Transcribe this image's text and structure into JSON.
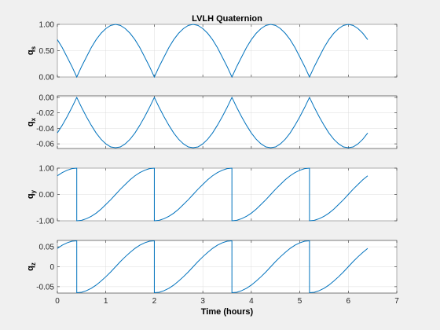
{
  "chart_data": {
    "type": "line",
    "title": "LVLH Quaternion",
    "xlabel": "Time (hours)",
    "xlim": [
      0,
      7
    ],
    "xticks": [
      0,
      1,
      2,
      3,
      4,
      5,
      6,
      7
    ],
    "xtick_labels": [
      "0",
      "1",
      "2",
      "3",
      "4",
      "5",
      "6",
      "7"
    ],
    "grid": true,
    "line_color": "#0072bd",
    "subplots": [
      {
        "ylabel_base": "q",
        "ylabel_sub": "s",
        "ylim": [
          0,
          1
        ],
        "yticks": [
          0,
          0.5,
          1
        ],
        "ytick_labels": [
          "0.00",
          "0.50",
          "1.00"
        ],
        "x": [
          0,
          0.1,
          0.2,
          0.3,
          0.4,
          0.5,
          0.6,
          0.7,
          0.8,
          0.9,
          1.0,
          1.1,
          1.2,
          1.3,
          1.4,
          1.5,
          1.6,
          1.7,
          1.8,
          1.9,
          2.0,
          2.1,
          2.2,
          2.3,
          2.4,
          2.5,
          2.6,
          2.7,
          2.8,
          2.9,
          3.0,
          3.1,
          3.2,
          3.3,
          3.4,
          3.5,
          3.6,
          3.7,
          3.8,
          3.9,
          4.0,
          4.1,
          4.2,
          4.3,
          4.4,
          4.5,
          4.6,
          4.7,
          4.8,
          4.9,
          5.0,
          5.1,
          5.2,
          5.3,
          5.4,
          5.5,
          5.6,
          5.7,
          5.8,
          5.9,
          6.0,
          6.1,
          6.2,
          6.3,
          6.4
        ],
        "y": [
          0.71,
          0.56,
          0.38,
          0.2,
          0.0,
          0.2,
          0.38,
          0.56,
          0.71,
          0.83,
          0.92,
          0.98,
          1.0,
          0.98,
          0.92,
          0.83,
          0.71,
          0.56,
          0.38,
          0.2,
          0.0,
          0.2,
          0.38,
          0.56,
          0.71,
          0.83,
          0.92,
          0.98,
          1.0,
          0.98,
          0.92,
          0.83,
          0.71,
          0.56,
          0.38,
          0.2,
          0.0,
          0.2,
          0.38,
          0.56,
          0.71,
          0.83,
          0.92,
          0.98,
          1.0,
          0.98,
          0.92,
          0.83,
          0.71,
          0.56,
          0.38,
          0.2,
          0.0,
          0.2,
          0.38,
          0.56,
          0.71,
          0.83,
          0.92,
          0.98,
          1.0,
          0.98,
          0.92,
          0.83,
          0.71
        ]
      },
      {
        "ylabel_base": "q",
        "ylabel_sub": "x",
        "ylim": [
          -0.066,
          0.002
        ],
        "yticks": [
          -0.06,
          -0.04,
          -0.02,
          0.0
        ],
        "ytick_labels": [
          "-0.06",
          "-0.04",
          "-0.02",
          "0.00"
        ],
        "x": [
          0,
          0.1,
          0.2,
          0.3,
          0.4,
          0.5,
          0.6,
          0.7,
          0.8,
          0.9,
          1.0,
          1.1,
          1.2,
          1.3,
          1.4,
          1.5,
          1.6,
          1.7,
          1.8,
          1.9,
          2.0,
          2.1,
          2.2,
          2.3,
          2.4,
          2.5,
          2.6,
          2.7,
          2.8,
          2.9,
          3.0,
          3.1,
          3.2,
          3.3,
          3.4,
          3.5,
          3.6,
          3.7,
          3.8,
          3.9,
          4.0,
          4.1,
          4.2,
          4.3,
          4.4,
          4.5,
          4.6,
          4.7,
          4.8,
          4.9,
          5.0,
          5.1,
          5.2,
          5.3,
          5.4,
          5.5,
          5.6,
          5.7,
          5.8,
          5.9,
          6.0,
          6.1,
          6.2,
          6.3,
          6.4
        ],
        "y": [
          -0.046,
          -0.036,
          -0.025,
          -0.013,
          0.0,
          -0.013,
          -0.025,
          -0.036,
          -0.046,
          -0.054,
          -0.06,
          -0.064,
          -0.065,
          -0.064,
          -0.06,
          -0.054,
          -0.046,
          -0.036,
          -0.025,
          -0.013,
          0.0,
          -0.013,
          -0.025,
          -0.036,
          -0.046,
          -0.054,
          -0.06,
          -0.064,
          -0.065,
          -0.064,
          -0.06,
          -0.054,
          -0.046,
          -0.036,
          -0.025,
          -0.013,
          0.0,
          -0.013,
          -0.025,
          -0.036,
          -0.046,
          -0.054,
          -0.06,
          -0.064,
          -0.065,
          -0.064,
          -0.06,
          -0.054,
          -0.046,
          -0.036,
          -0.025,
          -0.013,
          0.0,
          -0.013,
          -0.025,
          -0.036,
          -0.046,
          -0.054,
          -0.06,
          -0.064,
          -0.065,
          -0.064,
          -0.06,
          -0.054,
          -0.046
        ]
      },
      {
        "ylabel_base": "q",
        "ylabel_sub": "y",
        "ylim": [
          -1,
          1
        ],
        "yticks": [
          -1,
          0,
          1
        ],
        "ytick_labels": [
          "-1.00",
          "0.00",
          "1.00"
        ],
        "x": [
          0,
          0.1,
          0.2,
          0.3,
          0.4,
          0.4,
          0.5,
          0.6,
          0.7,
          0.8,
          0.9,
          1.0,
          1.1,
          1.2,
          1.3,
          1.4,
          1.5,
          1.6,
          1.7,
          1.8,
          1.9,
          2.0,
          2.0,
          2.1,
          2.2,
          2.3,
          2.4,
          2.5,
          2.6,
          2.7,
          2.8,
          2.9,
          3.0,
          3.1,
          3.2,
          3.3,
          3.4,
          3.5,
          3.6,
          3.6,
          3.7,
          3.8,
          3.9,
          4.0,
          4.1,
          4.2,
          4.3,
          4.4,
          4.5,
          4.6,
          4.7,
          4.8,
          4.9,
          5.0,
          5.1,
          5.2,
          5.2,
          5.3,
          5.4,
          5.5,
          5.6,
          5.7,
          5.8,
          5.9,
          6.0,
          6.1,
          6.2,
          6.3,
          6.4
        ],
        "y": [
          0.71,
          0.83,
          0.92,
          0.98,
          1.0,
          -1.0,
          -0.98,
          -0.92,
          -0.83,
          -0.71,
          -0.56,
          -0.38,
          -0.2,
          0.0,
          0.2,
          0.38,
          0.56,
          0.71,
          0.83,
          0.92,
          0.98,
          1.0,
          -1.0,
          -0.98,
          -0.92,
          -0.83,
          -0.71,
          -0.56,
          -0.38,
          -0.2,
          0.0,
          0.2,
          0.38,
          0.56,
          0.71,
          0.83,
          0.92,
          0.98,
          1.0,
          -1.0,
          -0.98,
          -0.92,
          -0.83,
          -0.71,
          -0.56,
          -0.38,
          -0.2,
          0.0,
          0.2,
          0.38,
          0.56,
          0.71,
          0.83,
          0.92,
          0.98,
          1.0,
          -1.0,
          -0.98,
          -0.92,
          -0.83,
          -0.71,
          -0.56,
          -0.38,
          -0.2,
          0.0,
          0.2,
          0.38,
          0.56,
          0.71
        ]
      },
      {
        "ylabel_base": "q",
        "ylabel_sub": "z",
        "ylim": [
          -0.066,
          0.066
        ],
        "yticks": [
          -0.05,
          0,
          0.05
        ],
        "ytick_labels": [
          "-0.05",
          "0",
          "0.05"
        ],
        "x": [
          0,
          0.1,
          0.2,
          0.3,
          0.4,
          0.4,
          0.5,
          0.6,
          0.7,
          0.8,
          0.9,
          1.0,
          1.1,
          1.2,
          1.3,
          1.4,
          1.5,
          1.6,
          1.7,
          1.8,
          1.9,
          2.0,
          2.0,
          2.1,
          2.2,
          2.3,
          2.4,
          2.5,
          2.6,
          2.7,
          2.8,
          2.9,
          3.0,
          3.1,
          3.2,
          3.3,
          3.4,
          3.5,
          3.6,
          3.6,
          3.7,
          3.8,
          3.9,
          4.0,
          4.1,
          4.2,
          4.3,
          4.4,
          4.5,
          4.6,
          4.7,
          4.8,
          4.9,
          5.0,
          5.1,
          5.2,
          5.2,
          5.3,
          5.4,
          5.5,
          5.6,
          5.7,
          5.8,
          5.9,
          6.0,
          6.1,
          6.2,
          6.3,
          6.4
        ],
        "y": [
          0.046,
          0.054,
          0.06,
          0.064,
          0.065,
          -0.065,
          -0.064,
          -0.06,
          -0.054,
          -0.046,
          -0.036,
          -0.025,
          -0.013,
          0.0,
          0.013,
          0.025,
          0.036,
          0.046,
          0.054,
          0.06,
          0.064,
          0.065,
          -0.065,
          -0.064,
          -0.06,
          -0.054,
          -0.046,
          -0.036,
          -0.025,
          -0.013,
          0.0,
          0.013,
          0.025,
          0.036,
          0.046,
          0.054,
          0.06,
          0.064,
          0.065,
          -0.065,
          -0.064,
          -0.06,
          -0.054,
          -0.046,
          -0.036,
          -0.025,
          -0.013,
          0.0,
          0.013,
          0.025,
          0.036,
          0.046,
          0.054,
          0.06,
          0.064,
          0.065,
          -0.065,
          -0.064,
          -0.06,
          -0.054,
          -0.046,
          -0.036,
          -0.025,
          -0.013,
          0.0,
          0.013,
          0.025,
          0.036,
          0.046
        ]
      }
    ]
  }
}
